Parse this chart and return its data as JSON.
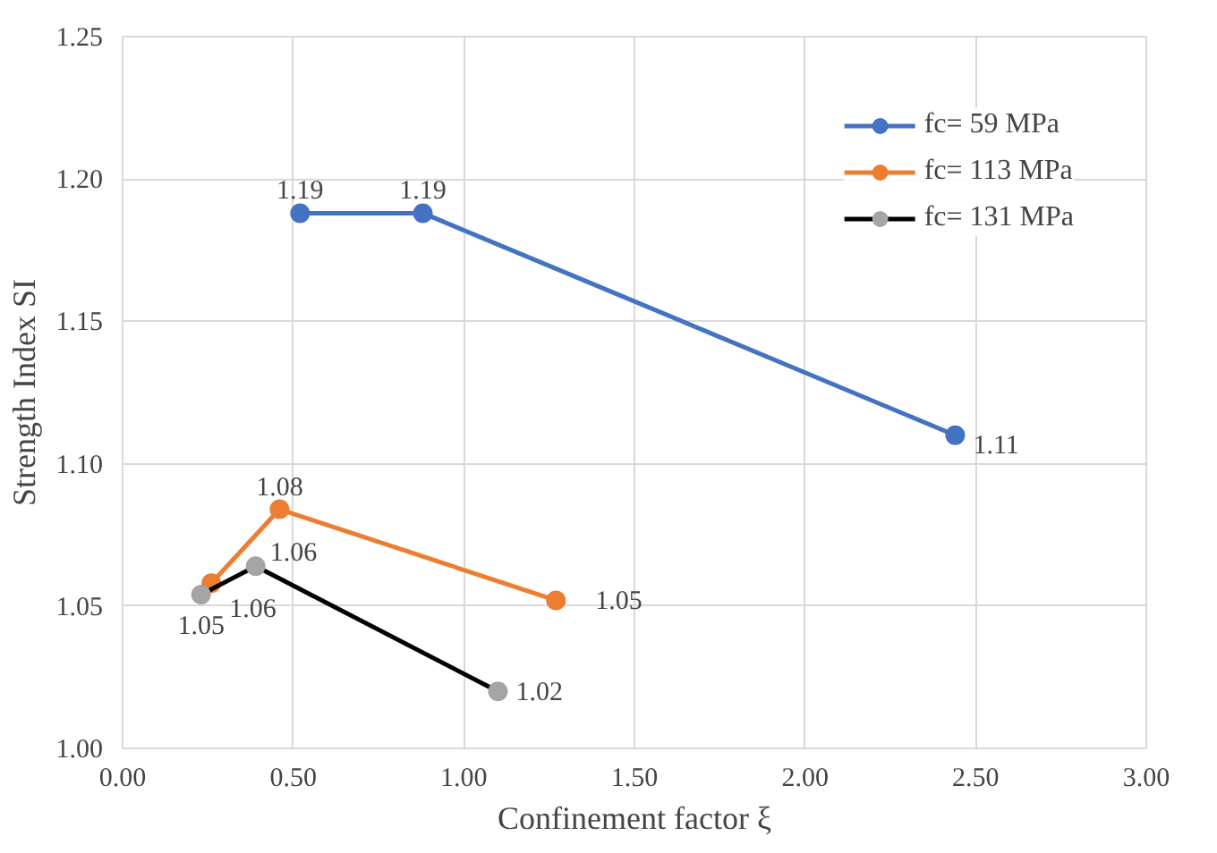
{
  "chart_data": {
    "type": "line",
    "xlabel": "Confinement factor ξ",
    "ylabel": "Strength Index SI",
    "xlim": [
      0,
      3
    ],
    "xticks": [
      {
        "value": 0,
        "label": "0.00"
      },
      {
        "value": 0.5,
        "label": "0.50"
      },
      {
        "value": 1,
        "label": "1.00"
      },
      {
        "value": 1.5,
        "label": "1.50"
      },
      {
        "value": 2,
        "label": "2.00"
      },
      {
        "value": 2.5,
        "label": "2.50"
      },
      {
        "value": 3,
        "label": "3.00"
      }
    ],
    "ylim": [
      1.0,
      1.25
    ],
    "yticks": [
      {
        "value": 1.0,
        "label": "1.00"
      },
      {
        "value": 1.05,
        "label": "1.05"
      },
      {
        "value": 1.1,
        "label": "1.10"
      },
      {
        "value": 1.15,
        "label": "1.15"
      },
      {
        "value": 1.2,
        "label": "1.20"
      },
      {
        "value": 1.25,
        "label": "1.25"
      }
    ],
    "grid": true,
    "legend": "top right",
    "marker": "circle",
    "line_style": "solid",
    "series": [
      {
        "name": "fc= 59 MPa",
        "color": "#4472c4",
        "x": [
          0.52,
          0.88,
          2.44
        ],
        "values": [
          1.188,
          1.188,
          1.11
        ],
        "value_labels": [
          "1.19",
          "1.19",
          "1.11"
        ]
      },
      {
        "name": "fc= 113 MPa",
        "color": "#ed7d31",
        "x": [
          0.26,
          0.46,
          1.27
        ],
        "values": [
          1.058,
          1.084,
          1.052
        ],
        "value_labels": [
          "1.06",
          "1.08",
          "1.05"
        ]
      },
      {
        "name": "fc= 131 MPa",
        "color": "#000000",
        "colors": [
          "#a5a5a5",
          "#a5a5a5",
          "#a5a5a5"
        ],
        "x": [
          0.23,
          0.39,
          1.1
        ],
        "values": [
          1.054,
          1.064,
          1.02
        ],
        "value_labels": [
          "1.05",
          "1.06",
          "1.02"
        ]
      }
    ]
  }
}
